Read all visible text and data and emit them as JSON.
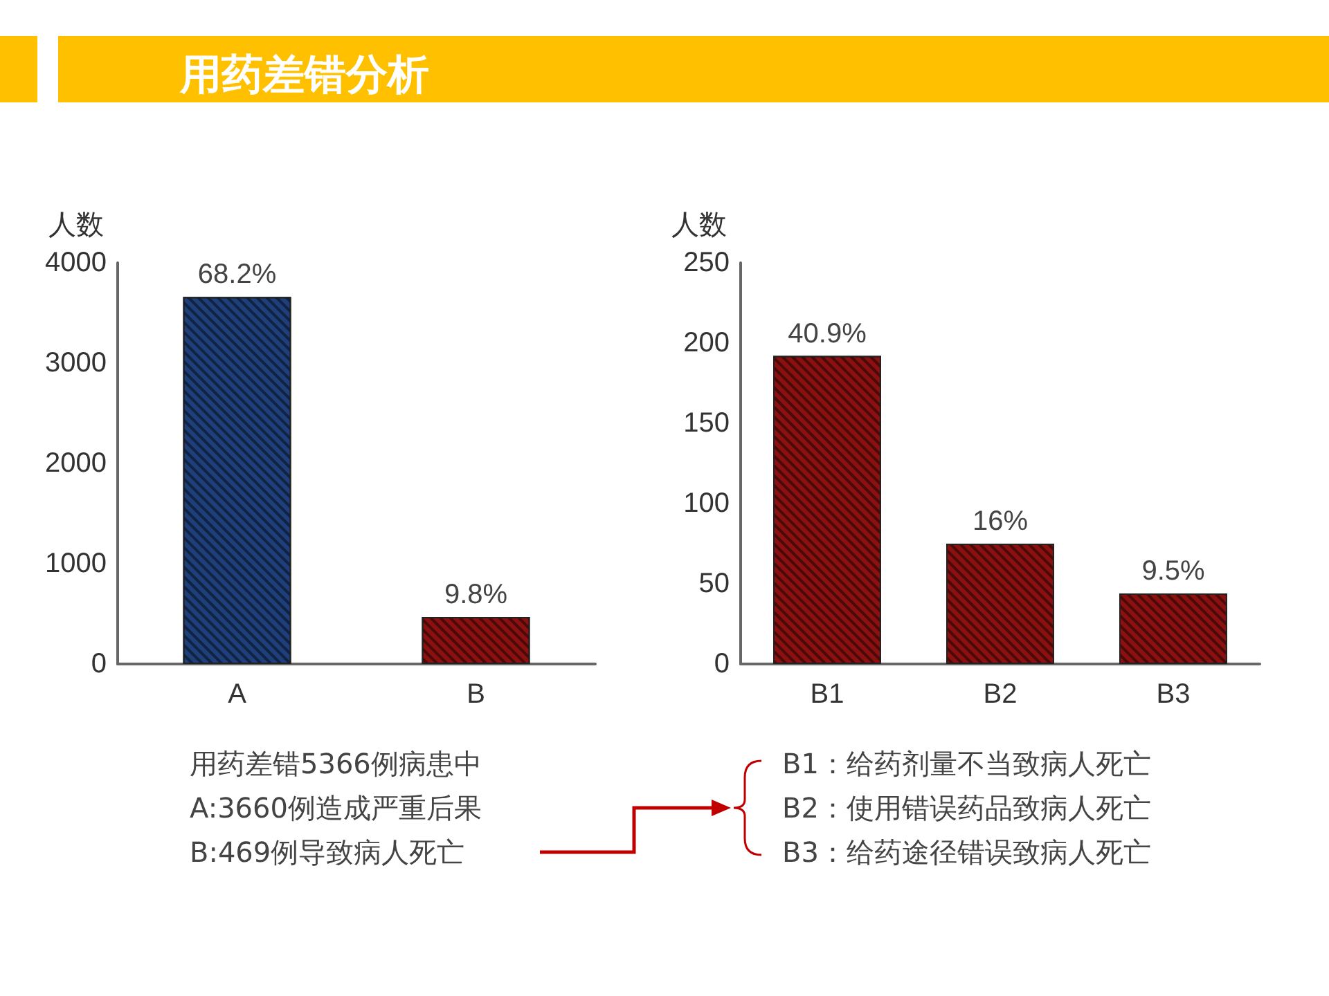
{
  "chart_data": [
    {
      "type": "bar",
      "title": "用药差错分析",
      "ylabel": "人数",
      "categories": [
        "A",
        "B"
      ],
      "values": [
        3660,
        469
      ],
      "colors": [
        "#1f3f7a",
        "#8b1010"
      ],
      "ylim": [
        0,
        4000
      ],
      "yticks": [
        0,
        1000,
        2000,
        3000,
        4000
      ],
      "grid": false,
      "annotations": [
        {
          "text": "68.2%",
          "x": "A",
          "y": 3660
        },
        {
          "text": "9.8%",
          "x": "B",
          "y": 469
        },
        "用药差错5366例病患中",
        "A:3660例造成严重后果",
        "B:469例导致病人死亡"
      ]
    },
    {
      "type": "bar",
      "ylabel": "人数",
      "categories": [
        "B1",
        "B2",
        "B3"
      ],
      "values": [
        192,
        75,
        44
      ],
      "colors": [
        "#8b1010",
        "#8b1010",
        "#8b1010"
      ],
      "ylim": [
        0,
        250
      ],
      "yticks": [
        0,
        50,
        100,
        150,
        200,
        250
      ],
      "grid": false,
      "annotations": [
        {
          "text": "40.9%",
          "x": "B1",
          "y": 192
        },
        {
          "text": "16%",
          "x": "B2",
          "y": 75
        },
        {
          "text": "9.5%",
          "x": "B3",
          "y": 44
        },
        "B1：给药剂量不当致病人死亡",
        "B2：使用错误药品致病人死亡",
        "B3：给药途径错误致病人死亡"
      ]
    }
  ]
}
